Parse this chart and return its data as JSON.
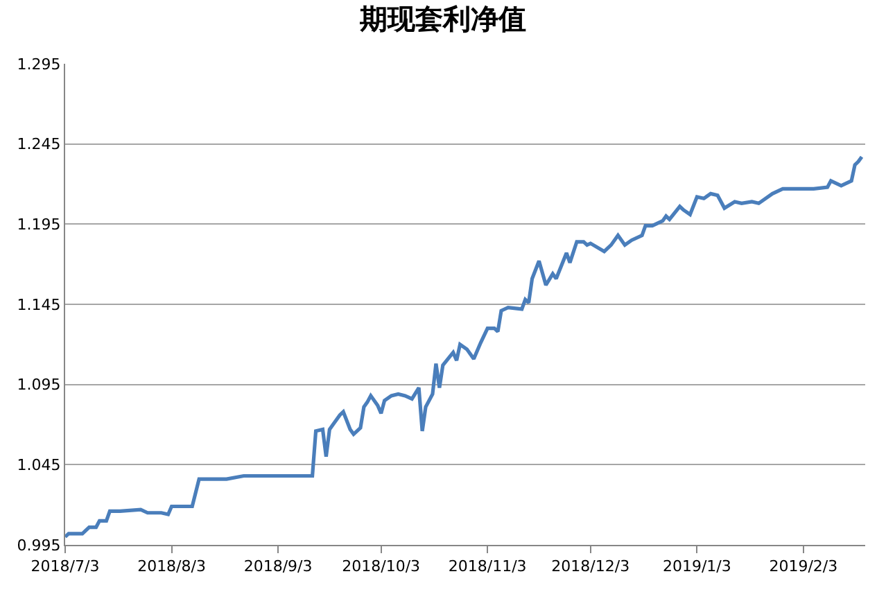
{
  "chart_data": {
    "type": "line",
    "title": "期现套利净值",
    "x": [
      "2018-07-03",
      "2018-07-04",
      "2018-07-08",
      "2018-07-10",
      "2018-07-12",
      "2018-07-13",
      "2018-07-15",
      "2018-07-16",
      "2018-07-19",
      "2018-07-25",
      "2018-07-27",
      "2018-07-31",
      "2018-08-02",
      "2018-08-03",
      "2018-08-09",
      "2018-08-11",
      "2018-08-19",
      "2018-08-24",
      "2018-09-13",
      "2018-09-14",
      "2018-09-16",
      "2018-09-17",
      "2018-09-18",
      "2018-09-19",
      "2018-09-21",
      "2018-09-22",
      "2018-09-24",
      "2018-09-25",
      "2018-09-27",
      "2018-09-28",
      "2018-09-29",
      "2018-09-30",
      "2018-10-02",
      "2018-10-03",
      "2018-10-04",
      "2018-10-06",
      "2018-10-08",
      "2018-10-10",
      "2018-10-12",
      "2018-10-14",
      "2018-10-15",
      "2018-10-16",
      "2018-10-18",
      "2018-10-19",
      "2018-10-20",
      "2018-10-21",
      "2018-10-24",
      "2018-10-25",
      "2018-10-26",
      "2018-10-28",
      "2018-10-30",
      "2018-11-01",
      "2018-11-03",
      "2018-11-05",
      "2018-11-06",
      "2018-11-07",
      "2018-11-09",
      "2018-11-13",
      "2018-11-14",
      "2018-11-15",
      "2018-11-16",
      "2018-11-18",
      "2018-11-20",
      "2018-11-22",
      "2018-11-23",
      "2018-11-26",
      "2018-11-27",
      "2018-11-29",
      "2018-12-01",
      "2018-12-02",
      "2018-12-03",
      "2018-12-07",
      "2018-12-09",
      "2018-12-11",
      "2018-12-13",
      "2018-12-15",
      "2018-12-18",
      "2018-12-19",
      "2018-12-21",
      "2018-12-24",
      "2018-12-25",
      "2018-12-26",
      "2018-12-29",
      "2018-12-30",
      "2019-01-01",
      "2019-01-03",
      "2019-01-05",
      "2019-01-07",
      "2019-01-09",
      "2019-01-11",
      "2019-01-14",
      "2019-01-16",
      "2019-01-19",
      "2019-01-21",
      "2019-01-25",
      "2019-01-28",
      "2019-02-06",
      "2019-02-10",
      "2019-02-11",
      "2019-02-14",
      "2019-02-17",
      "2019-02-18",
      "2019-02-19",
      "2019-02-20"
    ],
    "series": [
      {
        "color": "#4a7ebb",
        "values": [
          1.0,
          1.002,
          1.002,
          1.006,
          1.006,
          1.01,
          1.01,
          1.016,
          1.016,
          1.017,
          1.015,
          1.015,
          1.014,
          1.019,
          1.019,
          1.036,
          1.036,
          1.038,
          1.038,
          1.066,
          1.067,
          1.05,
          1.067,
          1.07,
          1.076,
          1.078,
          1.067,
          1.064,
          1.068,
          1.081,
          1.084,
          1.088,
          1.082,
          1.077,
          1.085,
          1.088,
          1.089,
          1.088,
          1.086,
          1.093,
          1.066,
          1.081,
          1.089,
          1.108,
          1.093,
          1.107,
          1.115,
          1.11,
          1.12,
          1.117,
          1.111,
          1.121,
          1.13,
          1.13,
          1.128,
          1.141,
          1.143,
          1.142,
          1.148,
          1.146,
          1.161,
          1.172,
          1.157,
          1.164,
          1.161,
          1.177,
          1.171,
          1.184,
          1.184,
          1.182,
          1.183,
          1.178,
          1.182,
          1.188,
          1.182,
          1.185,
          1.188,
          1.194,
          1.194,
          1.197,
          1.2,
          1.198,
          1.206,
          1.204,
          1.201,
          1.212,
          1.211,
          1.214,
          1.213,
          1.205,
          1.209,
          1.208,
          1.209,
          1.208,
          1.214,
          1.217,
          1.217,
          1.218,
          1.222,
          1.219,
          1.222,
          1.232,
          1.234,
          1.237
        ]
      }
    ],
    "xlim": [
      "2018-07-03",
      "2019-02-21"
    ],
    "xticks": [
      {
        "value": "2018-07-03",
        "label": "2018/7/3"
      },
      {
        "value": "2018-08-03",
        "label": "2018/8/3"
      },
      {
        "value": "2018-09-03",
        "label": "2018/9/3"
      },
      {
        "value": "2018-10-03",
        "label": "2018/10/3"
      },
      {
        "value": "2018-11-03",
        "label": "2018/11/3"
      },
      {
        "value": "2018-12-03",
        "label": "2018/12/3"
      },
      {
        "value": "2019-01-03",
        "label": "2019/1/3"
      },
      {
        "value": "2019-02-03",
        "label": "2019/2/3"
      }
    ],
    "ylim": [
      0.995,
      1.295
    ],
    "yticks": [
      0.995,
      1.045,
      1.095,
      1.145,
      1.195,
      1.245,
      1.295
    ],
    "grid": "y",
    "marker": "none",
    "line_style": "solid"
  }
}
